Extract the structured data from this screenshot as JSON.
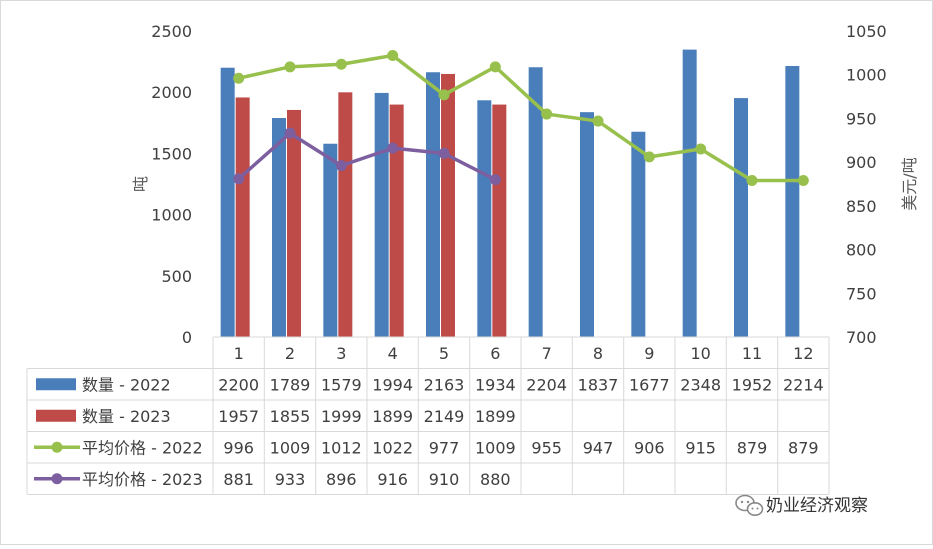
{
  "chart_data": {
    "type": "bar",
    "categories": [
      "1",
      "2",
      "3",
      "4",
      "5",
      "6",
      "7",
      "8",
      "9",
      "10",
      "11",
      "12"
    ],
    "ylabel": "吨",
    "y2label": "美元/吨",
    "ylim": [
      0,
      2500
    ],
    "y_ticks": [
      0,
      500,
      1000,
      1500,
      2000,
      2500
    ],
    "y2lim": [
      700,
      1050
    ],
    "y2_ticks": [
      700,
      750,
      800,
      850,
      900,
      950,
      1000,
      1050
    ],
    "grid": false,
    "legend": "data-table-left",
    "series": [
      {
        "name": "数量 - 2022",
        "kind": "bar",
        "axis": "left",
        "color": "#4a7ebb",
        "values": [
          2200,
          1789,
          1579,
          1994,
          2163,
          1934,
          2204,
          1837,
          1677,
          2348,
          1952,
          2214
        ]
      },
      {
        "name": "数量 - 2023",
        "kind": "bar",
        "axis": "left",
        "color": "#be4b48",
        "values": [
          1957,
          1855,
          1999,
          1899,
          2149,
          1899,
          null,
          null,
          null,
          null,
          null,
          null
        ]
      },
      {
        "name": "平均价格 - 2022",
        "kind": "line",
        "axis": "right",
        "color": "#98c04c",
        "values": [
          996,
          1009,
          1012,
          1022,
          977,
          1009,
          955,
          947,
          906,
          915,
          879,
          879
        ]
      },
      {
        "name": "平均价格 - 2023",
        "kind": "line",
        "axis": "right",
        "color": "#7d5fa0",
        "values": [
          881,
          933,
          896,
          916,
          910,
          880,
          null,
          null,
          null,
          null,
          null,
          null
        ]
      }
    ]
  },
  "watermark": {
    "text": "奶业经济观察",
    "icon": "wechat-icon"
  }
}
